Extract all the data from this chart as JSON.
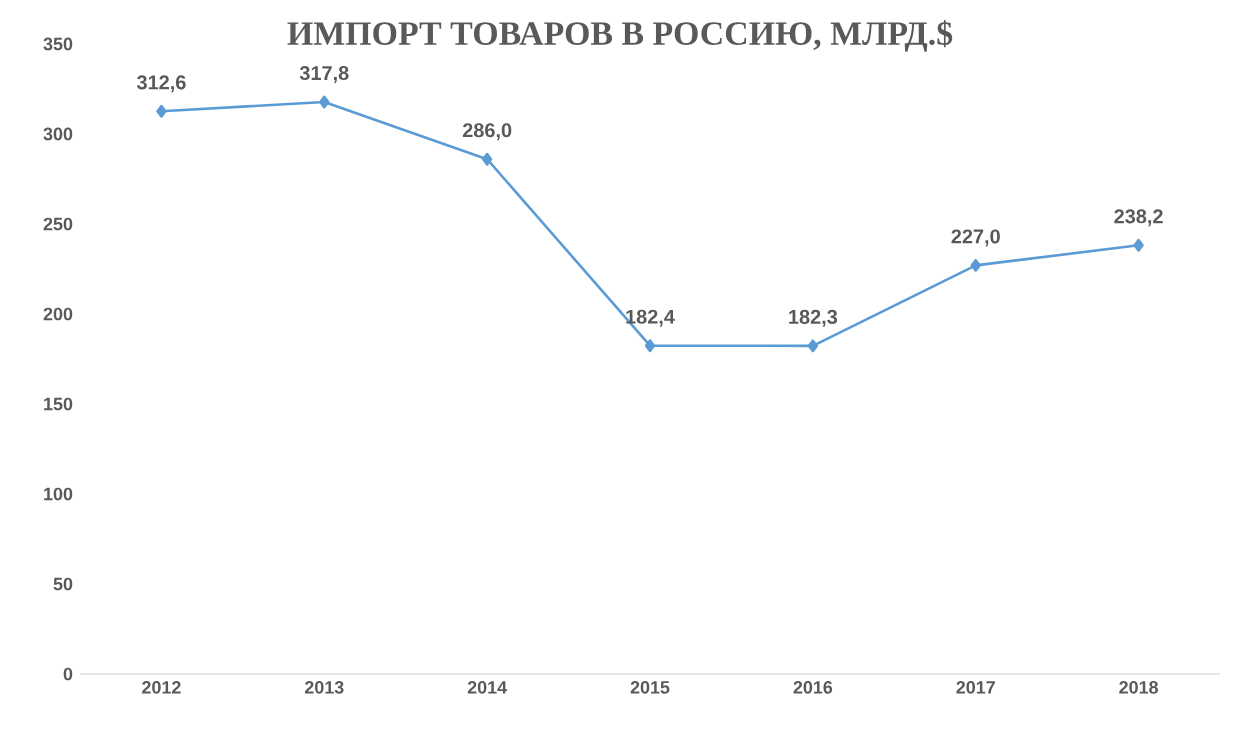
{
  "chart_data": {
    "type": "line",
    "title": "ИМПОРТ ТОВАРОВ В РОССИЮ, МЛРД.$",
    "categories": [
      "2012",
      "2013",
      "2014",
      "2015",
      "2016",
      "2017",
      "2018"
    ],
    "series": [
      {
        "color": "#5b9bd5",
        "values": [
          312.6,
          317.8,
          286.0,
          182.4,
          182.3,
          227.0,
          238.2
        ],
        "value_labels": [
          "312,6",
          "317,8",
          "286,0",
          "182,4",
          "182,3",
          "227,0",
          "238,2"
        ]
      }
    ],
    "ylim": [
      0,
      350
    ],
    "yticks": [
      0,
      50,
      100,
      150,
      200,
      250,
      300,
      350
    ],
    "grid": false,
    "marker": "diamond",
    "line_style": "solid"
  }
}
